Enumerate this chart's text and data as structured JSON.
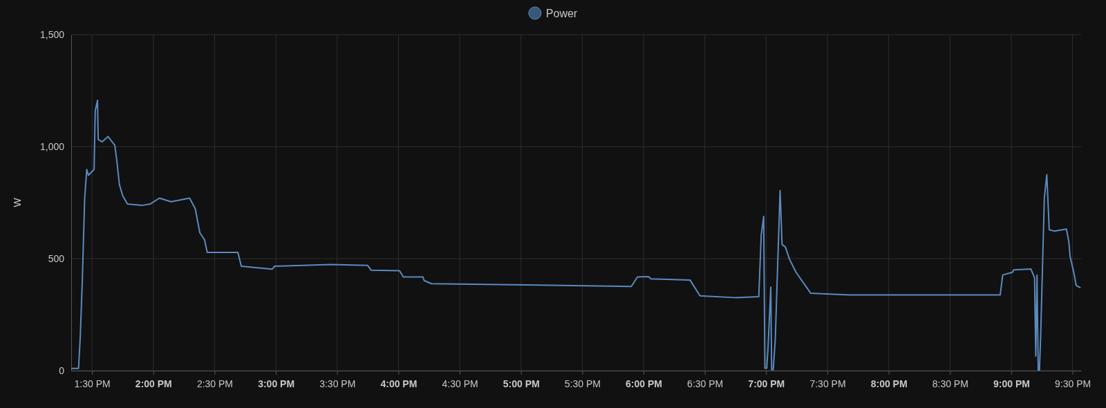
{
  "chart_data": {
    "type": "line",
    "ylabel": "W",
    "legend": "top",
    "grid": true,
    "marker": "none",
    "line_style": "solid",
    "xlim": [
      13.33,
      21.57
    ],
    "ylim": [
      0,
      1500
    ],
    "yticks": [
      {
        "value": 0,
        "label": "0"
      },
      {
        "value": 500,
        "label": "500"
      },
      {
        "value": 1000,
        "label": "1,000"
      },
      {
        "value": 1500,
        "label": "1,500"
      }
    ],
    "xticks": [
      {
        "value": 13.5,
        "label": "1:30 PM"
      },
      {
        "value": 14,
        "label": "2:00 PM"
      },
      {
        "value": 14.5,
        "label": "2:30 PM"
      },
      {
        "value": 15,
        "label": "3:00 PM"
      },
      {
        "value": 15.5,
        "label": "3:30 PM"
      },
      {
        "value": 16,
        "label": "4:00 PM"
      },
      {
        "value": 16.5,
        "label": "4:30 PM"
      },
      {
        "value": 17,
        "label": "5:00 PM"
      },
      {
        "value": 17.5,
        "label": "5:30 PM"
      },
      {
        "value": 18,
        "label": "6:00 PM"
      },
      {
        "value": 18.5,
        "label": "6:30 PM"
      },
      {
        "value": 19,
        "label": "7:00 PM"
      },
      {
        "value": 19.5,
        "label": "7:30 PM"
      },
      {
        "value": 20,
        "label": "8:00 PM"
      },
      {
        "value": 20.5,
        "label": "8:30 PM"
      },
      {
        "value": 21,
        "label": "9:00 PM"
      },
      {
        "value": 21.5,
        "label": "9:30 PM"
      }
    ],
    "series": [
      {
        "name": "Power",
        "color": "#5a8bbf",
        "x": [
          13.33,
          13.39,
          13.404,
          13.42,
          13.44,
          13.457,
          13.47,
          13.517,
          13.526,
          13.545,
          13.55,
          13.582,
          13.63,
          13.686,
          13.704,
          13.723,
          13.751,
          13.789,
          13.911,
          13.976,
          14.05,
          14.145,
          14.296,
          14.342,
          14.38,
          14.418,
          14.44,
          14.69,
          14.718,
          14.97,
          14.99,
          15.225,
          15.446,
          15.748,
          15.778,
          16.009,
          16.04,
          16.2,
          16.21,
          16.27,
          17.034,
          17.9,
          17.95,
          18.04,
          18.06,
          18.38,
          18.46,
          18.745,
          18.94,
          18.96,
          18.98,
          18.99,
          19.005,
          19.016,
          19.038,
          19.045,
          19.058,
          19.075,
          19.09,
          19.114,
          19.13,
          19.157,
          19.19,
          19.244,
          19.363,
          19.677,
          20.91,
          20.93,
          21.01,
          21.02,
          21.16,
          21.19,
          21.2,
          21.21,
          21.22,
          21.23,
          21.24,
          21.27,
          21.29,
          21.31,
          21.35,
          21.45,
          21.47,
          21.48,
          21.51,
          21.53,
          21.565
        ],
        "values": [
          10,
          10,
          152,
          389,
          770,
          898,
          872,
          898,
          1160,
          1207,
          1032,
          1021,
          1045,
          1006,
          929,
          831,
          780,
          744,
          738,
          744,
          770,
          754,
          770,
          723,
          615,
          584,
          528,
          528,
          466,
          453,
          466,
          470,
          474,
          470,
          448,
          446,
          418,
          418,
          402,
          388,
          383,
          376,
          418,
          420,
          410,
          404,
          334,
          326,
          330,
          605,
          688,
          11,
          11,
          106,
          373,
          5,
          5,
          142,
          403,
          804,
          563,
          552,
          498,
          439,
          346,
          338,
          338,
          427,
          439,
          450,
          454,
          415,
          65,
          427,
          3,
          3,
          154,
          771,
          875,
          629,
          623,
          632,
          575,
          510,
          439,
          380,
          370
        ]
      }
    ]
  }
}
